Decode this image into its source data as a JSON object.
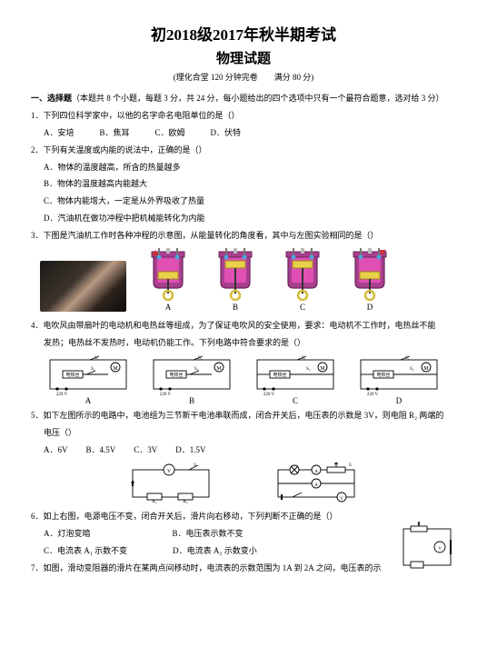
{
  "header": {
    "title_main": "初2018级2017年秋半期考试",
    "title_sub": "物理试题",
    "title_meta": "(理化合堂 120 分钟完卷　　满分 80 分)"
  },
  "section1": {
    "head_bold": "一、选择题",
    "head_rest": "（本题共 8 个小题，每题 3 分，共 24 分，每小题给出的四个选项中只有一个最符合题意，选对给 3 分）"
  },
  "q1": {
    "stem": "1．下列四位科学家中，以他的名字命名电阻单位的是（",
    "stem_end": "）",
    "opts": {
      "A": "A．安培",
      "B": "B．焦耳",
      "C": "C．欧姆",
      "D": "D．伏特"
    }
  },
  "q2": {
    "stem": "2．下列有关温度或内能的说法中，正确的是（",
    "stem_end": "）",
    "opts": {
      "A": "A．物体的温度越高，所含的热量越多",
      "B": "B．物体的温度越高内能越大",
      "C": "C．物体内能增大，一定是从外界吸收了热量",
      "D": "D．汽油机在做功冲程中把机械能转化为内能"
    }
  },
  "q3": {
    "stem": "3．下图是汽油机工作时各种冲程的示意图，从能量转化的角度看，其中与左图实验相同的是（",
    "stem_end": "）",
    "labels": {
      "A": "A",
      "B": "B",
      "C": "C",
      "D": "D"
    },
    "engine_style": {
      "body_fill": "#a83f8f",
      "body_stroke": "#6a245b",
      "inner": "#e04fb3",
      "piston": "#e9d24a",
      "valve": "#4aa6d6",
      "spring": "#777",
      "wheel": "#d4bc3a"
    }
  },
  "q4": {
    "stem1": "4．电吹风由带扇叶的电动机和电热丝等组成，为了保证电吹风的安全使用，要求：电动机不工作时，电热丝不能",
    "stem2": "发热；电热丝不发热时，电动机仍能工作。下列电路中符合要求的是（",
    "stem_end": "）",
    "labels": {
      "A": "A",
      "B": "B",
      "C": "C",
      "D": "D"
    },
    "circuit_labels": {
      "heat": "电热丝",
      "motor": "M",
      "volt": "220 V",
      "s1": "S₁",
      "s2": "S₂"
    },
    "circuit_style": {
      "stroke": "#000",
      "width": 1
    }
  },
  "q5": {
    "stem1": "5．如下左图所示的电路中，电池组为三节新干电池串联而成，闭合开关后，电压表的示数是 3V，则电阻 R₂ 两端的",
    "stem2": "电压（",
    "stem_end": "）",
    "opts": {
      "A": "A．6V",
      "B": "B．4.5V",
      "C": "C．3V",
      "D": "D．1.5V"
    },
    "circ_labels": {
      "s": "S",
      "v": "V",
      "a": "A",
      "r1": "R₁",
      "r2": "R₂"
    }
  },
  "q6": {
    "stem": "6．如上右图，电源电压不变，闭合开关后，滑片向右移动，下列判断不正确的是（",
    "stem_end": "）",
    "opts": {
      "A": "A．灯泡变暗",
      "B": "B．电压表示数不变",
      "C": "C．电流表 A₁ 示数不变",
      "D": "D．电流表 A₂ 示数变小"
    }
  },
  "q7": {
    "stem": "7．如图，滑动变阻器的滑片在某两点间移动时，电流表的示数范围为 1A 到 2A 之间，电压表的示",
    "labels": {
      "r": "R",
      "v": "V"
    }
  },
  "colors": {
    "text": "#000000",
    "page_bg": "#ffffff"
  }
}
